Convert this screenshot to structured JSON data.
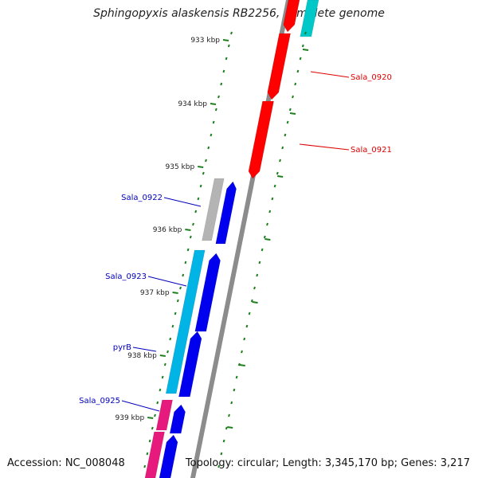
{
  "title": "Sphingopyxis alaskensis RB2256, complete genome",
  "footer": {
    "accession": "Accession: NC_008048",
    "summary": "Topology: circular; Length: 3,345,170 bp; Genes: 3,217"
  },
  "colors": {
    "forward_cds": "#ff0000",
    "forward_cds_2": "#00c8c8",
    "reverse_cds": "#0000ee",
    "reverse_cds_2": "#00b4e6",
    "pink_cds": "#e6197d",
    "grey_feature": "#b4b4b4",
    "backbone": "#8c8c8c",
    "tick_color": "#1e7f1e",
    "forward_label": "#dd0000",
    "reverse_label": "#0000bb"
  },
  "ticks": [
    {
      "label": "933 kbp"
    },
    {
      "label": "934 kbp"
    },
    {
      "label": "935 kbp"
    },
    {
      "label": "936 kbp"
    },
    {
      "label": "937 kbp"
    },
    {
      "label": "938 kbp"
    },
    {
      "label": "939 kbp"
    }
  ],
  "genes": {
    "forward": [
      {
        "name": "Sala_0920"
      },
      {
        "name": "Sala_0921"
      }
    ],
    "reverse": [
      {
        "name": "Sala_0922"
      },
      {
        "name": "Sala_0923"
      },
      {
        "name": "pyrB"
      },
      {
        "name": "Sala_0925"
      }
    ]
  }
}
